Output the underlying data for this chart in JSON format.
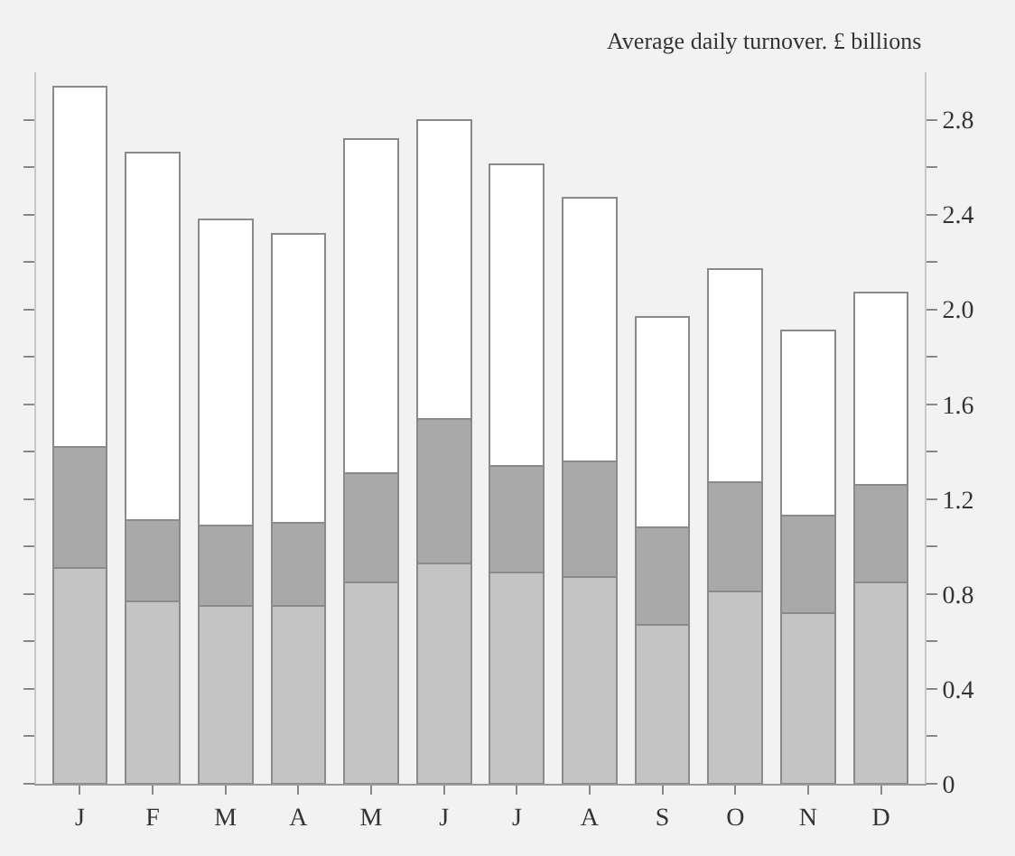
{
  "chart_data": {
    "type": "bar",
    "stacked": true,
    "ylabel": "Average daily turnover. £ billions",
    "categories": [
      "J",
      "F",
      "M",
      "A",
      "M",
      "J",
      "J",
      "A",
      "S",
      "O",
      "N",
      "D"
    ],
    "series": [
      {
        "color": "#c4c4c4",
        "values": [
          0.91,
          0.77,
          0.75,
          0.75,
          0.85,
          0.93,
          0.89,
          0.87,
          0.67,
          0.81,
          0.72,
          0.85
        ]
      },
      {
        "color": "#a9a9a9",
        "values": [
          0.51,
          0.34,
          0.34,
          0.35,
          0.46,
          0.61,
          0.45,
          0.49,
          0.41,
          0.46,
          0.41,
          0.41
        ]
      },
      {
        "color": "#ffffff",
        "values": [
          1.52,
          1.55,
          1.29,
          1.22,
          1.41,
          1.26,
          1.27,
          1.11,
          0.89,
          0.9,
          0.78,
          0.81
        ]
      }
    ],
    "ylim": [
      0,
      3.0
    ],
    "yticks": [
      0,
      {
        "value": 0.2,
        "label": null
      },
      0.4,
      {
        "value": 0.6,
        "label": null
      },
      0.8,
      {
        "value": 1.0,
        "label": null
      },
      1.2,
      {
        "value": 1.4,
        "label": null
      },
      1.6,
      {
        "value": 1.8,
        "label": null
      },
      {
        "value": 2.0,
        "label": "2.0"
      },
      {
        "value": 2.2,
        "label": null
      },
      2.4,
      {
        "value": 2.6,
        "label": null
      },
      2.8
    ]
  }
}
